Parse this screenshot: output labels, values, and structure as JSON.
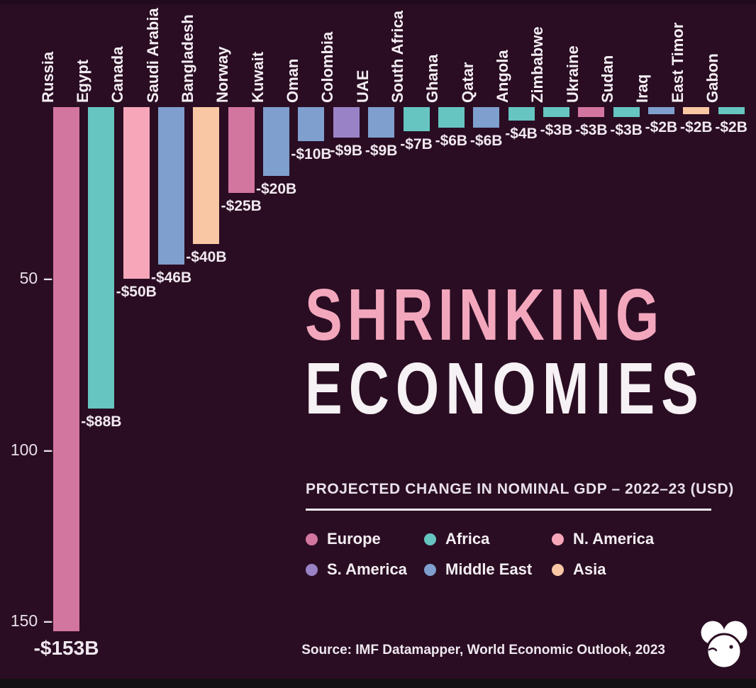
{
  "title": {
    "line1": "SHRINKING",
    "line2": "ECONOMIES"
  },
  "subtitle": "PROJECTED CHANGE IN NOMINAL GDP – 2022–23 (USD)",
  "source": "Source: IMF Datamapper, World Economic Outlook, 2023",
  "colors": {
    "background": "#2a0d23",
    "title_pink": "#f3a7bd",
    "title_white": "#f6f1f4",
    "text": "#f4eef3",
    "bottom_strip": "#131014"
  },
  "axis": {
    "tick_labels": [
      "50",
      "100",
      "150"
    ],
    "tick_values": [
      50,
      100,
      150
    ],
    "tick_dash": "–"
  },
  "legend": {
    "items": [
      {
        "label": "Europe",
        "color": "#d3769f"
      },
      {
        "label": "Africa",
        "color": "#66c5c0"
      },
      {
        "label": "N. America",
        "color": "#f7a6ba"
      },
      {
        "label": "S. America",
        "color": "#9a82c6"
      },
      {
        "label": "Middle East",
        "color": "#7f9fce"
      },
      {
        "label": "Asia",
        "color": "#f9c7a4"
      }
    ]
  },
  "chart_data": {
    "type": "bar",
    "orientation": "vertical-downward",
    "title": "SHRINKING ECONOMIES",
    "subtitle": "PROJECTED CHANGE IN NOMINAL GDP – 2022–23 (USD)",
    "unit": "USD billions",
    "ylabel": "",
    "xlabel": "",
    "ylim": [
      0,
      -160
    ],
    "grid": false,
    "legend_position": "center-right",
    "categories": [
      "Russia",
      "Egypt",
      "Canada",
      "Saudi Arabia",
      "Bangladesh",
      "Norway",
      "Kuwait",
      "Oman",
      "Colombia",
      "UAE",
      "South Africa",
      "Ghana",
      "Qatar",
      "Angola",
      "Zimbabwe",
      "Ukraine",
      "Sudan",
      "Iraq",
      "East Timor",
      "Gabon"
    ],
    "values": [
      -153,
      -88,
      -50,
      -46,
      -40,
      -25,
      -20,
      -10,
      -9,
      -9,
      -7,
      -6,
      -6,
      -4,
      -3,
      -3,
      -3,
      -2,
      -2,
      -2
    ],
    "value_labels": [
      "-$153B",
      "-$88B",
      "-$50B",
      "-$46B",
      "-$40B",
      "-$25B",
      "-$20B",
      "-$10B",
      "-$9B",
      "-$9B",
      "-$7B",
      "-$6B",
      "-$6B",
      "-$4B",
      "-$3B",
      "-$3B",
      "-$3B",
      "-$2B",
      "-$2B",
      "-$2B"
    ],
    "regions": [
      "Europe",
      "Africa",
      "N. America",
      "Middle East",
      "Asia",
      "Europe",
      "Middle East",
      "Middle East",
      "S. America",
      "Middle East",
      "Africa",
      "Africa",
      "Middle East",
      "Africa",
      "Africa",
      "Europe",
      "Africa",
      "Middle East",
      "Asia",
      "Africa"
    ],
    "region_colors": {
      "Europe": "#d3769f",
      "Africa": "#66c5c0",
      "N. America": "#f7a6ba",
      "S. America": "#9a82c6",
      "Middle East": "#7f9fce",
      "Asia": "#f9c7a4"
    }
  }
}
